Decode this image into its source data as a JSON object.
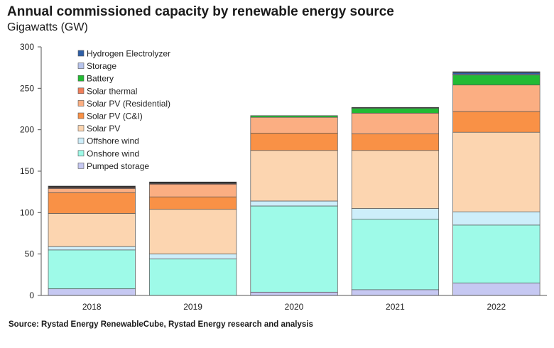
{
  "title": "Annual commissioned capacity by renewable energy source",
  "subtitle": "Gigawatts (GW)",
  "source": "Source: Rystad Energy RenewableCube, Rystad Energy research and analysis",
  "chart_data": {
    "type": "bar",
    "stacked": true,
    "title": "Annual commissioned capacity by renewable energy source",
    "subtitle": "Gigawatts (GW)",
    "xlabel": "",
    "ylabel": "",
    "ylim": [
      0,
      300
    ],
    "yticks": [
      0,
      50,
      100,
      150,
      200,
      250,
      300
    ],
    "grid": false,
    "legend_position": "top-left",
    "categories": [
      "2018",
      "2019",
      "2020",
      "2021",
      "2022"
    ],
    "series": [
      {
        "name": "Pumped storage",
        "color": "#c6c8f2",
        "values": [
          8,
          0,
          4,
          7,
          15
        ]
      },
      {
        "name": "Onshore wind",
        "color": "#9efae8",
        "values": [
          47,
          44,
          104,
          85,
          70
        ]
      },
      {
        "name": "Offshore wind",
        "color": "#cdeefa",
        "values": [
          4,
          6,
          6,
          13,
          16
        ]
      },
      {
        "name": "Solar PV",
        "color": "#fcd5b0",
        "values": [
          40,
          54,
          61,
          70,
          96
        ]
      },
      {
        "name": "Solar PV (C&I)",
        "color": "#f99146",
        "values": [
          25,
          15,
          21,
          20,
          25
        ]
      },
      {
        "name": "Solar PV (Residential)",
        "color": "#fbae82",
        "values": [
          5,
          15,
          19,
          25,
          32
        ]
      },
      {
        "name": "Solar thermal",
        "color": "#f07f5a",
        "values": [
          1,
          1,
          0,
          0,
          0
        ]
      },
      {
        "name": "Battery",
        "color": "#22bb33",
        "values": [
          0,
          0,
          2,
          6,
          12
        ]
      },
      {
        "name": "Storage",
        "color": "#b7c4ec",
        "values": [
          0,
          0,
          0,
          0,
          1
        ]
      },
      {
        "name": "Hydrogen Electrolyzer",
        "color": "#2f5fa6",
        "values": [
          0,
          0,
          0,
          0,
          2
        ]
      },
      {
        "name": "",
        "color": "#222222",
        "values": [
          2,
          2,
          0,
          1,
          1
        ]
      }
    ]
  }
}
